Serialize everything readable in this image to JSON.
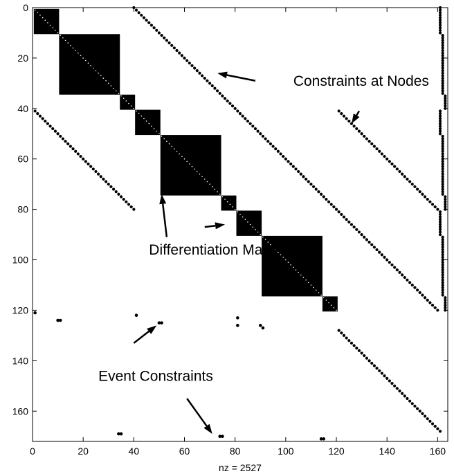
{
  "chart_data": {
    "type": "spy",
    "xlabel": "nz = 2527",
    "xlim": [
      0,
      164
    ],
    "ylim": [
      172,
      0
    ],
    "xticks": [
      0,
      20,
      40,
      60,
      80,
      100,
      120,
      140,
      160
    ],
    "yticks": [
      0,
      20,
      40,
      60,
      80,
      100,
      120,
      140,
      160
    ],
    "blocks": [
      {
        "r0": 1,
        "r1": 10,
        "c0": 1,
        "c1": 10
      },
      {
        "r0": 11,
        "r1": 34,
        "c0": 11,
        "c1": 34
      },
      {
        "r0": 35,
        "r1": 40,
        "c0": 35,
        "c1": 40
      },
      {
        "r0": 41,
        "r1": 50,
        "c0": 41,
        "c1": 50
      },
      {
        "r0": 51,
        "r1": 74,
        "c0": 51,
        "c1": 74
      },
      {
        "r0": 75,
        "r1": 80,
        "c0": 75,
        "c1": 80
      },
      {
        "r0": 81,
        "r1": 90,
        "c0": 81,
        "c1": 90
      },
      {
        "r0": 91,
        "r1": 114,
        "c0": 91,
        "c1": 114
      },
      {
        "r0": 115,
        "r1": 120,
        "c0": 115,
        "c1": 120
      }
    ],
    "diagonal_lines": [
      {
        "r0": 0,
        "c0": 40,
        "r1": 120,
        "c1": 160
      },
      {
        "r0": 41,
        "c0": 1,
        "r1": 80,
        "c1": 40
      },
      {
        "r0": 41,
        "c0": 121,
        "r1": 80,
        "c1": 160
      },
      {
        "r0": 128,
        "c0": 121,
        "r1": 168,
        "c1": 161
      }
    ],
    "right_column_segments": [
      {
        "r0": 0,
        "r1": 10,
        "c": 161
      },
      {
        "r0": 11,
        "r1": 34,
        "c": 162
      },
      {
        "r0": 35,
        "r1": 40,
        "c": 163
      },
      {
        "r0": 41,
        "r1": 50,
        "c": 161
      },
      {
        "r0": 51,
        "r1": 74,
        "c": 162
      },
      {
        "r0": 75,
        "r1": 80,
        "c": 163
      },
      {
        "r0": 81,
        "r1": 90,
        "c": 161
      },
      {
        "r0": 91,
        "r1": 114,
        "c": 162
      },
      {
        "r0": 115,
        "r1": 120,
        "c": 163
      }
    ],
    "isolated_points": [
      {
        "r": 121,
        "c": 1
      },
      {
        "r": 124,
        "c": 10
      },
      {
        "r": 124,
        "c": 11
      },
      {
        "r": 122,
        "c": 41
      },
      {
        "r": 125,
        "c": 50
      },
      {
        "r": 125,
        "c": 51
      },
      {
        "r": 123,
        "c": 81
      },
      {
        "r": 126,
        "c": 81
      },
      {
        "r": 126,
        "c": 90
      },
      {
        "r": 127,
        "c": 91
      },
      {
        "r": 169,
        "c": 34
      },
      {
        "r": 169,
        "c": 35
      },
      {
        "r": 170,
        "c": 74
      },
      {
        "r": 170,
        "c": 75
      },
      {
        "r": 171,
        "c": 114
      },
      {
        "r": 171,
        "c": 115
      }
    ],
    "annotations": [
      {
        "text": "Constraints at Nodes",
        "tx": 103,
        "ty": 31
      },
      {
        "text": "Differentiation Matrices",
        "tx": 46,
        "ty": 98
      },
      {
        "text": "Event Constraints",
        "tx": 26,
        "ty": 148
      }
    ],
    "arrows": [
      {
        "from": [
          88,
          29
        ],
        "to": [
          73,
          26
        ]
      },
      {
        "from": [
          129,
          41
        ],
        "to": [
          126,
          46
        ]
      },
      {
        "from": [
          53,
          91
        ],
        "to": [
          51,
          74
        ]
      },
      {
        "from": [
          68,
          87
        ],
        "to": [
          76,
          86
        ]
      },
      {
        "from": [
          40,
          133
        ],
        "to": [
          49,
          126
        ]
      },
      {
        "from": [
          61,
          155
        ],
        "to": [
          71,
          169
        ]
      }
    ],
    "colors": {
      "marker": "#000000",
      "background": "#ffffff"
    }
  }
}
